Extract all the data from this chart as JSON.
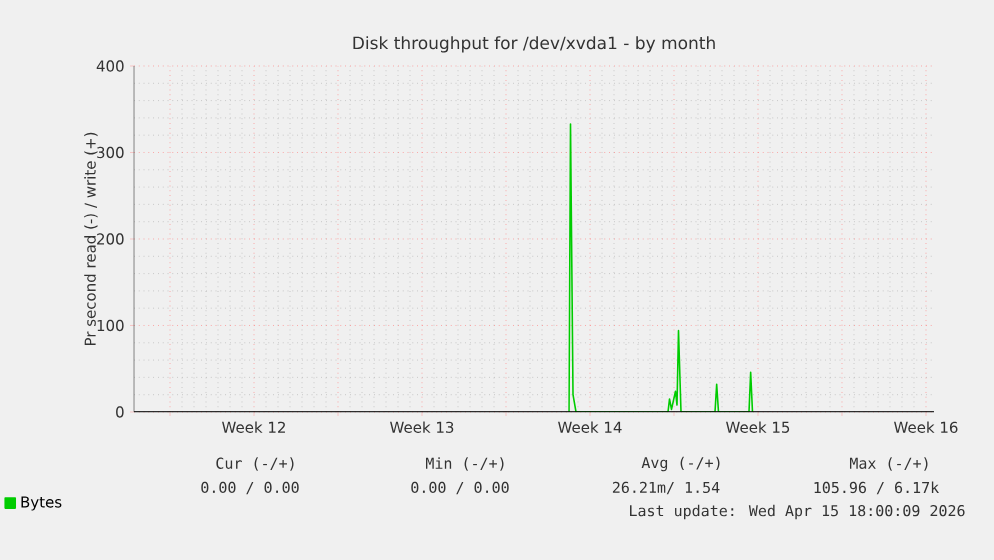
{
  "chart_data": {
    "type": "line",
    "title": "Disk throughput for /dev/xvda1 - by month",
    "ylabel": "Pr second read (-) / write (+)",
    "x": [
      "2026-04-01T15:00",
      "2026-04-01T16:30",
      "2026-04-01T19:00",
      "2026-04-01T22:00",
      "2026-04-05T18:00",
      "2026-04-05T19:30",
      "2026-04-05T21:30",
      "2026-04-06T01:30",
      "2026-04-06T03:00",
      "2026-04-06T04:30",
      "2026-04-06T07:00",
      "2026-04-07T17:00",
      "2026-04-07T18:40",
      "2026-04-07T20:30",
      "2026-04-09T03:00",
      "2026-04-09T04:40",
      "2026-04-09T06:30"
    ],
    "series": [
      {
        "name": "Bytes",
        "color": "#00cc00",
        "values": [
          0,
          333,
          20,
          0,
          0,
          15,
          3,
          24,
          8,
          94,
          0,
          0,
          32,
          0,
          0,
          46,
          0
        ]
      }
    ],
    "xlim": [
      "2026-03-14T12:00",
      "2026-04-16T20:00"
    ],
    "xticks": [
      {
        "value": "2026-03-16",
        "label": null
      },
      {
        "value": "2026-03-19T12:00",
        "label": "Week 12"
      },
      {
        "value": "2026-03-23",
        "label": null
      },
      {
        "value": "2026-03-26T12:00",
        "label": "Week 13"
      },
      {
        "value": "2026-03-30",
        "label": null
      },
      {
        "value": "2026-04-02T12:00",
        "label": "Week 14"
      },
      {
        "value": "2026-04-06",
        "label": null
      },
      {
        "value": "2026-04-09T12:00",
        "label": "Week 15"
      },
      {
        "value": "2026-04-13",
        "label": null
      },
      {
        "value": "2026-04-16T12:00",
        "label": "Week 16"
      }
    ],
    "ylim": [
      0,
      400
    ],
    "yticks": [
      0,
      100,
      200,
      300,
      400
    ],
    "grid": true,
    "legend": "bottom left",
    "annotations": [
      "Cur (-/+)",
      "Min (-/+)",
      "Avg (-/+)",
      "Max (-/+)",
      "0.00 /  0.00",
      "0.00 /  0.00",
      "26.21m/  1.54",
      "105.96 /  6.17k",
      "Last update: Wed Apr 15 18:00:09 2026"
    ]
  }
}
